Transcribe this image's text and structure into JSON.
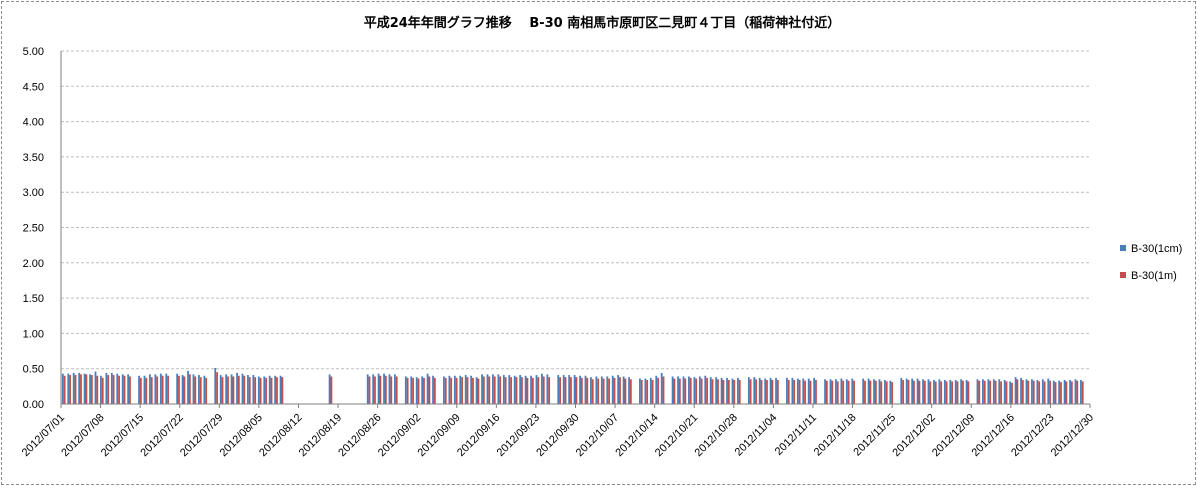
{
  "chart_data": {
    "type": "bar",
    "title": "平成24年年間グラフ推移　 B-30 南相馬市原町区二見町４丁目（稲荷神社付近）",
    "xlabel": "",
    "ylabel": "",
    "ylim": [
      0,
      5
    ],
    "yticks": [
      "5.00",
      "4.50",
      "4.00",
      "3.50",
      "3.00",
      "2.50",
      "2.00",
      "1.50",
      "1.00",
      "0.50",
      "0.00"
    ],
    "xticks": [
      "2012/07/01",
      "2012/07/08",
      "2012/07/15",
      "2012/07/22",
      "2012/07/29",
      "2012/08/05",
      "2012/08/12",
      "2012/08/19",
      "2012/08/26",
      "2012/09/02",
      "2012/09/09",
      "2012/09/16",
      "2012/09/23",
      "2012/09/30",
      "2012/10/07",
      "2012/10/14",
      "2012/10/21",
      "2012/10/28",
      "2012/11/04",
      "2012/11/11",
      "2012/11/18",
      "2012/11/25",
      "2012/12/02",
      "2012/12/09",
      "2012/12/16",
      "2012/12/23",
      "2012/12/30"
    ],
    "grid": true,
    "legend_position": "right",
    "colors": {
      "B-30(1cm)": "#4a7ebb",
      "B-30(1m)": "#c0504d"
    },
    "series": [
      {
        "name": "B-30(1cm)",
        "values": [
          0.43,
          0.43,
          0.44,
          0.44,
          0.43,
          0.42,
          0.46,
          0.4,
          0.44,
          0.44,
          0.43,
          0.42,
          0.42,
          null,
          0.4,
          0.4,
          0.42,
          0.42,
          0.43,
          0.43,
          null,
          0.43,
          0.41,
          0.47,
          0.42,
          0.41,
          0.4,
          null,
          0.51,
          0.41,
          0.42,
          0.42,
          0.44,
          0.43,
          0.41,
          0.41,
          0.39,
          0.39,
          0.4,
          0.4,
          0.4,
          null,
          null,
          null,
          null,
          null,
          null,
          null,
          null,
          0.42,
          null,
          null,
          null,
          null,
          null,
          null,
          0.42,
          0.42,
          0.43,
          0.43,
          0.42,
          0.42,
          null,
          0.39,
          0.39,
          0.38,
          0.39,
          0.43,
          0.4,
          null,
          0.39,
          0.4,
          0.4,
          0.4,
          0.41,
          0.4,
          0.38,
          0.42,
          0.42,
          0.42,
          0.42,
          0.41,
          0.41,
          0.4,
          0.41,
          0.4,
          0.4,
          0.41,
          0.43,
          0.42,
          null,
          0.41,
          0.41,
          0.41,
          0.41,
          0.4,
          0.4,
          0.38,
          0.39,
          0.39,
          0.39,
          0.4,
          0.41,
          0.39,
          0.38,
          null,
          0.36,
          0.36,
          0.37,
          0.4,
          0.44,
          null,
          0.39,
          0.39,
          0.39,
          0.39,
          0.38,
          0.39,
          0.4,
          0.38,
          0.38,
          0.37,
          0.37,
          0.36,
          0.37,
          null,
          0.38,
          0.38,
          0.37,
          0.36,
          0.37,
          0.37,
          null,
          0.37,
          0.37,
          0.36,
          0.36,
          0.36,
          0.37,
          null,
          0.35,
          0.35,
          0.35,
          0.36,
          0.35,
          0.36,
          null,
          0.36,
          0.36,
          0.35,
          0.35,
          0.34,
          0.33,
          null,
          0.37,
          0.36,
          0.36,
          0.36,
          0.35,
          0.35,
          0.34,
          0.35,
          0.34,
          0.34,
          0.34,
          0.35,
          0.34,
          null,
          0.35,
          0.35,
          0.35,
          0.35,
          0.35,
          0.34,
          0.32,
          0.38,
          0.37,
          0.35,
          0.35,
          0.34,
          0.35,
          0.36,
          0.33,
          0.33,
          0.34,
          0.34,
          0.35,
          0.34,
          null
        ]
      },
      {
        "name": "B-30(1m)",
        "values": [
          0.4,
          0.41,
          0.41,
          0.42,
          0.42,
          0.41,
          0.4,
          0.37,
          0.41,
          0.41,
          0.4,
          0.4,
          0.39,
          null,
          0.37,
          0.37,
          0.38,
          0.39,
          0.4,
          0.4,
          null,
          0.4,
          0.39,
          0.42,
          0.39,
          0.38,
          0.37,
          null,
          0.45,
          0.38,
          0.39,
          0.39,
          0.4,
          0.4,
          0.38,
          0.38,
          0.37,
          0.37,
          0.37,
          0.38,
          0.38,
          null,
          null,
          null,
          null,
          null,
          null,
          null,
          null,
          0.39,
          null,
          null,
          null,
          null,
          null,
          null,
          0.39,
          0.39,
          0.4,
          0.4,
          0.39,
          0.39,
          null,
          0.37,
          0.37,
          0.36,
          0.37,
          0.39,
          0.37,
          null,
          0.37,
          0.37,
          0.37,
          0.38,
          0.38,
          0.37,
          0.36,
          0.39,
          0.39,
          0.39,
          0.39,
          0.38,
          0.38,
          0.38,
          0.38,
          0.37,
          0.37,
          0.38,
          0.39,
          0.38,
          null,
          0.38,
          0.38,
          0.38,
          0.38,
          0.37,
          0.37,
          0.35,
          0.36,
          0.36,
          0.36,
          0.37,
          0.38,
          0.36,
          0.35,
          null,
          0.34,
          0.34,
          0.34,
          0.37,
          0.39,
          null,
          0.36,
          0.36,
          0.36,
          0.37,
          0.36,
          0.36,
          0.37,
          0.35,
          0.35,
          0.34,
          0.34,
          0.34,
          0.34,
          null,
          0.35,
          0.35,
          0.34,
          0.34,
          0.34,
          0.34,
          null,
          0.34,
          0.34,
          0.34,
          0.33,
          0.33,
          0.34,
          null,
          0.33,
          0.33,
          0.32,
          0.33,
          0.33,
          0.33,
          null,
          0.33,
          0.33,
          0.33,
          0.32,
          0.32,
          0.31,
          null,
          0.34,
          0.34,
          0.33,
          0.33,
          0.33,
          0.32,
          0.32,
          0.32,
          0.32,
          0.32,
          0.32,
          0.33,
          0.32,
          null,
          0.33,
          0.33,
          0.33,
          0.33,
          0.32,
          0.32,
          0.3,
          0.35,
          0.34,
          0.33,
          0.33,
          0.32,
          0.32,
          0.33,
          0.31,
          0.31,
          0.32,
          0.32,
          0.33,
          0.32,
          null
        ]
      }
    ]
  }
}
